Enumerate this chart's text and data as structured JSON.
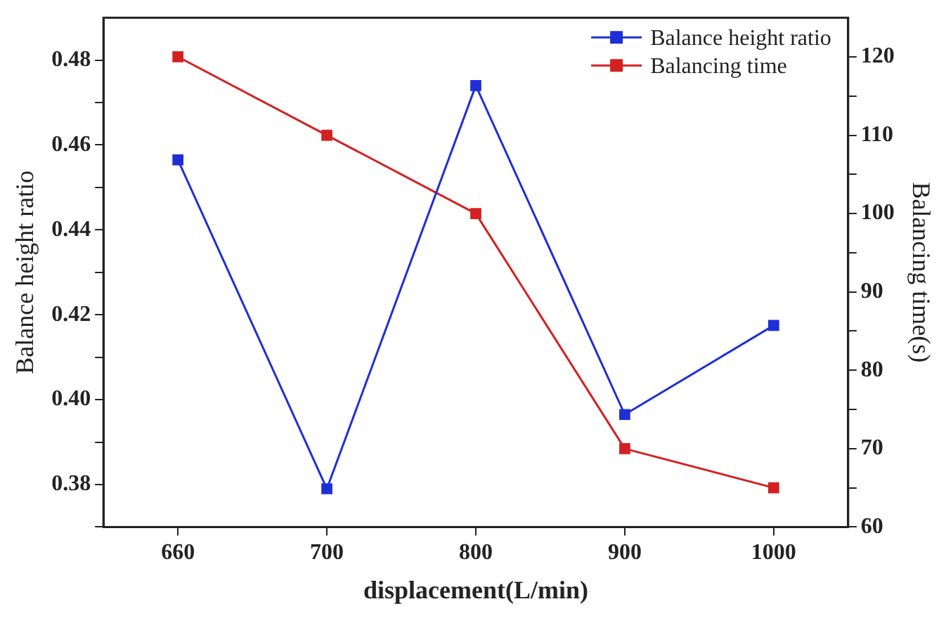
{
  "chart_data": {
    "type": "line",
    "xlabel": "displacement(L/min)",
    "ylabel": "Balance height ratio",
    "y2label": "Balancing time(s)",
    "categories": [
      "660",
      "700",
      "800",
      "900",
      "1000"
    ],
    "series": [
      {
        "name": "Balance height ratio",
        "color": "#1f2fd6",
        "values": [
          0.4565,
          0.379,
          0.474,
          0.3965,
          0.4175
        ]
      },
      {
        "name": "Balancing time",
        "color": "#d42020",
        "axis": "y2",
        "values": [
          120,
          110,
          100,
          70,
          65
        ]
      }
    ],
    "ylim": [
      0.37,
      0.49
    ],
    "yticks": [
      {
        "value": 0.37,
        "label": null
      },
      0.38,
      {
        "value": 0.39,
        "label": null
      },
      {
        "value": 0.4,
        "label": "0.40"
      },
      {
        "value": 0.41,
        "label": null
      },
      0.42,
      {
        "value": 0.43,
        "label": null
      },
      0.44,
      {
        "value": 0.45,
        "label": null
      },
      0.46,
      {
        "value": 0.47,
        "label": null
      },
      0.48
    ],
    "y2lim": [
      60,
      125
    ],
    "y2ticks": [
      60,
      {
        "value": 65,
        "label": null
      },
      70,
      {
        "value": 75,
        "label": null
      },
      80,
      {
        "value": 85,
        "label": null
      },
      90,
      {
        "value": 95,
        "label": null
      },
      100,
      {
        "value": 105,
        "label": null
      },
      110,
      {
        "value": 115,
        "label": null
      },
      120
    ],
    "grid": false,
    "legend": "top right",
    "marker": "square",
    "line_style": "solid"
  }
}
